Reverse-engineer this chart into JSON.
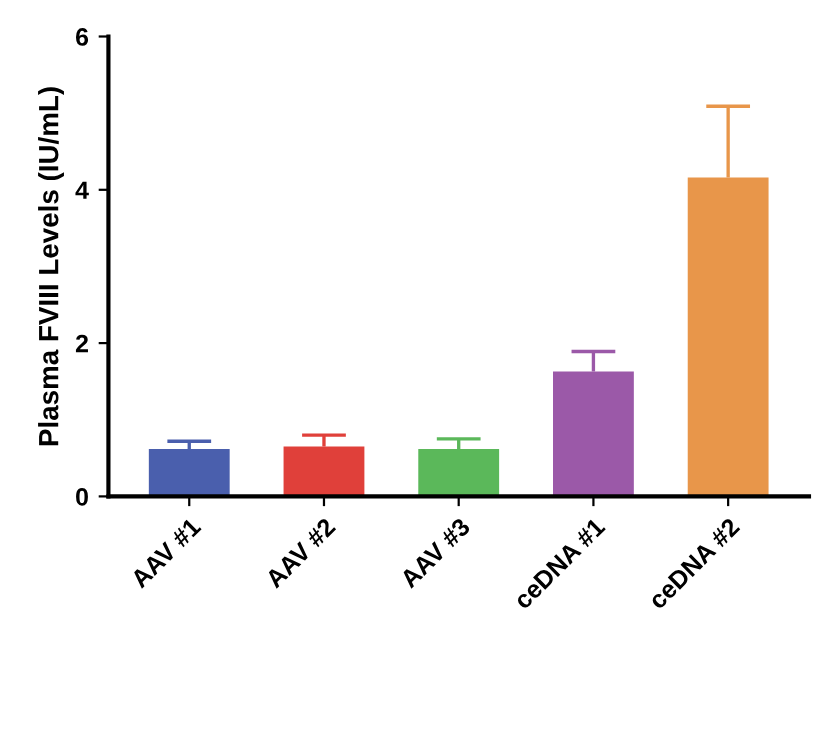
{
  "chart_data": {
    "type": "bar",
    "ylabel": "Plasma FVIII Levels (IU/mL)",
    "categories": [
      "AAV #1",
      "AAV #2",
      "AAV #3",
      "ceDNA #1",
      "ceDNA #2"
    ],
    "values": [
      0.62,
      0.65,
      0.62,
      1.63,
      4.16
    ],
    "errors": [
      [
        0.62,
        0.72
      ],
      [
        0.65,
        0.8
      ],
      [
        0.62,
        0.75
      ],
      [
        1.63,
        1.89
      ],
      [
        4.16,
        5.09
      ]
    ],
    "colors": [
      "#4a5fad",
      "#e0403a",
      "#5bb85a",
      "#9b59a8",
      "#e8964a"
    ],
    "ylim": [
      0,
      6
    ],
    "yticks": [
      0,
      2,
      4,
      6
    ],
    "grid": false
  }
}
